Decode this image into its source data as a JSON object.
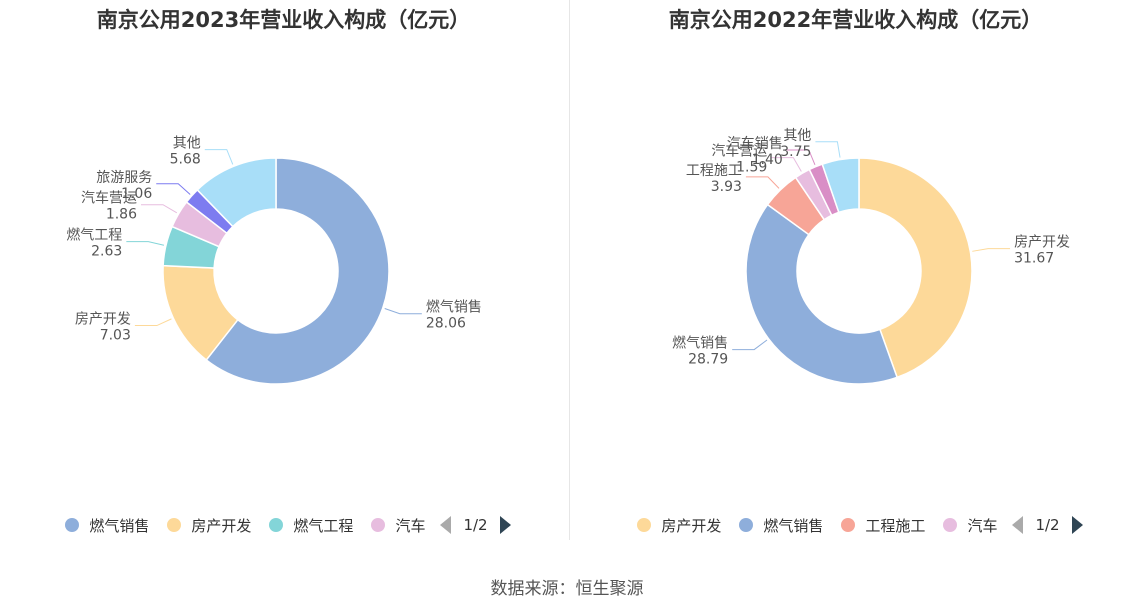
{
  "source_text": "数据来源：恒生聚源",
  "chart_data": [
    {
      "type": "pie",
      "donut": true,
      "title": "南京公用2023年营业收入构成（亿元）",
      "slices": [
        {
          "name": "燃气销售",
          "value": 28.06,
          "value_label": "28.06",
          "color": "#8eaedb"
        },
        {
          "name": "房产开发",
          "value": 7.03,
          "value_label": "7.03",
          "color": "#fdd999"
        },
        {
          "name": "燃气工程",
          "value": 2.63,
          "value_label": "2.63",
          "color": "#83d5d8"
        },
        {
          "name": "汽车营运",
          "value": 1.86,
          "value_label": "1.86",
          "color": "#e7bddf"
        },
        {
          "name": "旅游服务",
          "value": 1.06,
          "value_label": "1.06",
          "color": "#7d7cf0"
        },
        {
          "name": "其他",
          "value": 5.68,
          "value_label": "5.68",
          "color": "#a8def8"
        }
      ],
      "legend": {
        "items": [
          "燃气销售",
          "房产开发",
          "燃气工程",
          "汽车"
        ],
        "colors": [
          "#8eaedb",
          "#fdd999",
          "#83d5d8",
          "#e7bddf"
        ],
        "page": "1/2",
        "placement": "bottom"
      }
    },
    {
      "type": "pie",
      "donut": true,
      "title": "南京公用2022年营业收入构成（亿元）",
      "slices": [
        {
          "name": "房产开发",
          "value": 31.67,
          "value_label": "31.67",
          "color": "#fdd999"
        },
        {
          "name": "燃气销售",
          "value": 28.79,
          "value_label": "28.79",
          "color": "#8eaedb"
        },
        {
          "name": "工程施工",
          "value": 3.93,
          "value_label": "3.93",
          "color": "#f7a597"
        },
        {
          "name": "汽车营运",
          "value": 1.59,
          "value_label": "1.59",
          "color": "#e7bddf"
        },
        {
          "name": "汽车销售",
          "value": 1.4,
          "value_label": "1.40",
          "color": "#d98ec6"
        },
        {
          "name": "其他",
          "value": 3.75,
          "value_label": "3.75",
          "color": "#a8def8"
        }
      ],
      "legend": {
        "items": [
          "房产开发",
          "燃气销售",
          "工程施工",
          "汽车"
        ],
        "colors": [
          "#fdd999",
          "#8eaedb",
          "#f7a597",
          "#e7bddf"
        ],
        "page": "1/2",
        "placement": "bottom"
      }
    }
  ]
}
